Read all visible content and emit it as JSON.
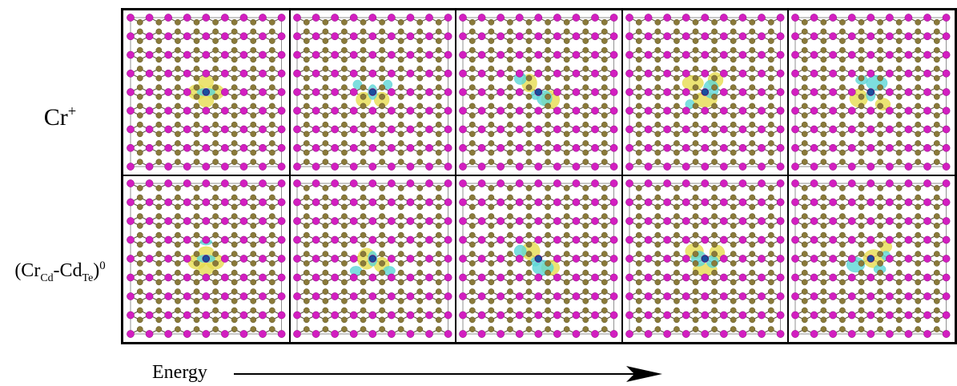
{
  "row_labels": {
    "row1": {
      "base": "Cr",
      "sup": "+"
    },
    "row2": {
      "open": "(Cr",
      "sub1": "Cd",
      "mid": "-Cd",
      "sub2": "Te",
      "close": ")",
      "sup": "0"
    }
  },
  "axis": {
    "label": "Energy"
  },
  "colors": {
    "te_atom": "#d21ec0",
    "cd_atom": "#8a7a3a",
    "bond": "#5a5040",
    "iso_positive": "#e6dc50",
    "iso_negative": "#5cd6d6",
    "defect_center": "#1a4f9e"
  },
  "panels": [
    {
      "row": 1,
      "col": 1,
      "lobes": [
        {
          "dx": -0.06,
          "dy": 0.0,
          "rx": 0.06,
          "ry": 0.05,
          "c": "pos"
        },
        {
          "dx": 0.06,
          "dy": 0.0,
          "rx": 0.06,
          "ry": 0.05,
          "c": "pos"
        },
        {
          "dx": 0.0,
          "dy": -0.07,
          "rx": 0.05,
          "ry": 0.04,
          "c": "pos"
        },
        {
          "dx": 0.0,
          "dy": 0.06,
          "rx": 0.05,
          "ry": 0.04,
          "c": "pos"
        },
        {
          "dx": 0.0,
          "dy": 0.0,
          "rx": 0.06,
          "ry": 0.025,
          "c": "neg"
        }
      ]
    },
    {
      "row": 1,
      "col": 2,
      "lobes": [
        {
          "dx": -0.06,
          "dy": 0.05,
          "rx": 0.05,
          "ry": 0.05,
          "c": "pos"
        },
        {
          "dx": 0.06,
          "dy": 0.05,
          "rx": 0.05,
          "ry": 0.05,
          "c": "pos"
        },
        {
          "dx": -0.1,
          "dy": -0.05,
          "rx": 0.03,
          "ry": 0.03,
          "c": "neg"
        },
        {
          "dx": 0.1,
          "dy": -0.05,
          "rx": 0.03,
          "ry": 0.03,
          "c": "neg"
        },
        {
          "dx": 0.0,
          "dy": 0.0,
          "rx": 0.03,
          "ry": 0.05,
          "c": "neg"
        }
      ]
    },
    {
      "row": 1,
      "col": 3,
      "lobes": [
        {
          "dx": -0.06,
          "dy": -0.06,
          "rx": 0.05,
          "ry": 0.06,
          "c": "pos"
        },
        {
          "dx": 0.08,
          "dy": 0.05,
          "rx": 0.06,
          "ry": 0.06,
          "c": "pos"
        },
        {
          "dx": -0.12,
          "dy": -0.09,
          "rx": 0.04,
          "ry": 0.04,
          "c": "neg"
        },
        {
          "dx": 0.04,
          "dy": 0.04,
          "rx": 0.05,
          "ry": 0.05,
          "c": "neg"
        },
        {
          "dx": -0.02,
          "dy": 0.02,
          "rx": 0.03,
          "ry": 0.03,
          "c": "neg"
        }
      ]
    },
    {
      "row": 1,
      "col": 4,
      "lobes": [
        {
          "dx": -0.08,
          "dy": -0.06,
          "rx": 0.07,
          "ry": 0.05,
          "c": "pos"
        },
        {
          "dx": 0.07,
          "dy": -0.08,
          "rx": 0.05,
          "ry": 0.05,
          "c": "pos"
        },
        {
          "dx": 0.0,
          "dy": 0.05,
          "rx": 0.08,
          "ry": 0.05,
          "c": "pos"
        },
        {
          "dx": 0.04,
          "dy": -0.02,
          "rx": 0.05,
          "ry": 0.06,
          "c": "neg"
        },
        {
          "dx": -0.1,
          "dy": 0.08,
          "rx": 0.03,
          "ry": 0.03,
          "c": "neg"
        }
      ]
    },
    {
      "row": 1,
      "col": 5,
      "lobes": [
        {
          "dx": -0.08,
          "dy": 0.04,
          "rx": 0.06,
          "ry": 0.06,
          "c": "pos"
        },
        {
          "dx": 0.08,
          "dy": 0.08,
          "rx": 0.05,
          "ry": 0.04,
          "c": "pos"
        },
        {
          "dx": 0.04,
          "dy": -0.06,
          "rx": 0.07,
          "ry": 0.05,
          "c": "neg"
        },
        {
          "dx": -0.06,
          "dy": -0.08,
          "rx": 0.04,
          "ry": 0.03,
          "c": "neg"
        },
        {
          "dx": 0.0,
          "dy": 0.02,
          "rx": 0.03,
          "ry": 0.04,
          "c": "neg"
        }
      ]
    },
    {
      "row": 2,
      "col": 1,
      "lobes": [
        {
          "dx": -0.06,
          "dy": 0.02,
          "rx": 0.06,
          "ry": 0.05,
          "c": "pos"
        },
        {
          "dx": 0.06,
          "dy": 0.02,
          "rx": 0.06,
          "ry": 0.05,
          "c": "pos"
        },
        {
          "dx": 0.0,
          "dy": -0.05,
          "rx": 0.05,
          "ry": 0.03,
          "c": "pos"
        },
        {
          "dx": 0.0,
          "dy": 0.07,
          "rx": 0.05,
          "ry": 0.04,
          "c": "pos"
        },
        {
          "dx": 0.0,
          "dy": -0.11,
          "rx": 0.04,
          "ry": 0.02,
          "c": "neg"
        },
        {
          "dx": 0.0,
          "dy": 0.0,
          "rx": 0.06,
          "ry": 0.025,
          "c": "neg"
        }
      ]
    },
    {
      "row": 2,
      "col": 2,
      "lobes": [
        {
          "dx": -0.04,
          "dy": 0.0,
          "rx": 0.06,
          "ry": 0.07,
          "c": "pos"
        },
        {
          "dx": 0.06,
          "dy": 0.04,
          "rx": 0.05,
          "ry": 0.05,
          "c": "pos"
        },
        {
          "dx": -0.11,
          "dy": 0.08,
          "rx": 0.04,
          "ry": 0.03,
          "c": "neg"
        },
        {
          "dx": 0.11,
          "dy": 0.08,
          "rx": 0.04,
          "ry": 0.03,
          "c": "neg"
        },
        {
          "dx": 0.0,
          "dy": 0.0,
          "rx": 0.03,
          "ry": 0.05,
          "c": "neg"
        }
      ]
    },
    {
      "row": 2,
      "col": 3,
      "lobes": [
        {
          "dx": -0.05,
          "dy": -0.05,
          "rx": 0.06,
          "ry": 0.06,
          "c": "pos"
        },
        {
          "dx": 0.08,
          "dy": 0.06,
          "rx": 0.06,
          "ry": 0.05,
          "c": "pos"
        },
        {
          "dx": -0.12,
          "dy": -0.05,
          "rx": 0.04,
          "ry": 0.04,
          "c": "neg"
        },
        {
          "dx": 0.03,
          "dy": 0.06,
          "rx": 0.07,
          "ry": 0.05,
          "c": "neg"
        },
        {
          "dx": -0.02,
          "dy": 0.02,
          "rx": 0.03,
          "ry": 0.03,
          "c": "neg"
        }
      ]
    },
    {
      "row": 2,
      "col": 4,
      "lobes": [
        {
          "dx": -0.07,
          "dy": -0.05,
          "rx": 0.06,
          "ry": 0.05,
          "c": "pos"
        },
        {
          "dx": 0.08,
          "dy": -0.04,
          "rx": 0.05,
          "ry": 0.05,
          "c": "pos"
        },
        {
          "dx": 0.0,
          "dy": 0.07,
          "rx": 0.08,
          "ry": 0.04,
          "c": "pos"
        },
        {
          "dx": -0.04,
          "dy": 0.0,
          "rx": 0.05,
          "ry": 0.05,
          "c": "neg"
        },
        {
          "dx": 0.05,
          "dy": 0.02,
          "rx": 0.04,
          "ry": 0.04,
          "c": "neg"
        }
      ]
    },
    {
      "row": 2,
      "col": 5,
      "lobes": [
        {
          "dx": 0.02,
          "dy": 0.0,
          "rx": 0.07,
          "ry": 0.06,
          "c": "pos"
        },
        {
          "dx": 0.1,
          "dy": -0.08,
          "rx": 0.04,
          "ry": 0.04,
          "c": "pos"
        },
        {
          "dx": -0.1,
          "dy": 0.04,
          "rx": 0.06,
          "ry": 0.05,
          "c": "neg"
        },
        {
          "dx": 0.06,
          "dy": 0.07,
          "rx": 0.04,
          "ry": 0.03,
          "c": "neg"
        },
        {
          "dx": 0.1,
          "dy": -0.02,
          "rx": 0.03,
          "ry": 0.03,
          "c": "neg"
        }
      ]
    }
  ]
}
